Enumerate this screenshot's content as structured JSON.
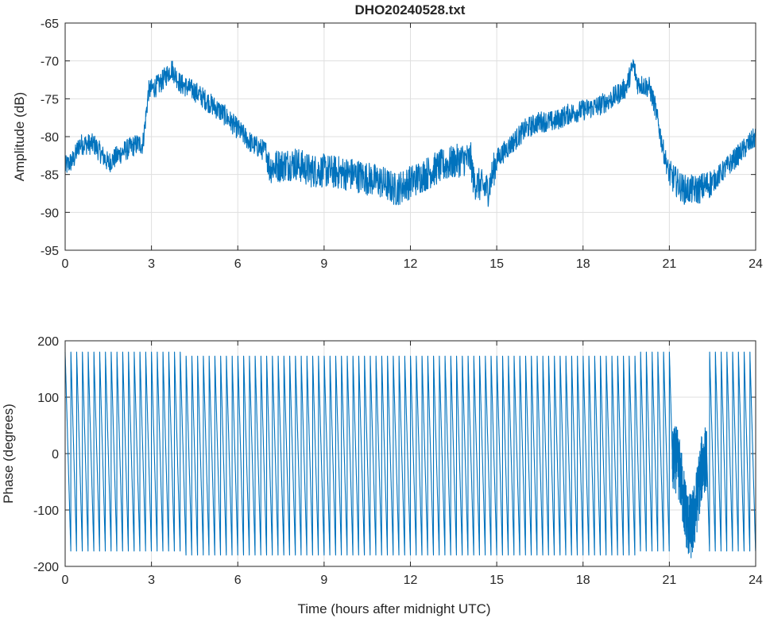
{
  "chart_data": [
    {
      "type": "line",
      "title": "DHO20240528.txt",
      "xlabel": "",
      "ylabel": "Amplitude (dB)",
      "xlim": [
        0,
        24
      ],
      "ylim": [
        -95,
        -65
      ],
      "xticks": [
        "0",
        "3",
        "6",
        "9",
        "12",
        "15",
        "18",
        "21",
        "24"
      ],
      "yticks": [
        "-65",
        "-70",
        "-75",
        "-80",
        "-85",
        "-90",
        "-95"
      ],
      "grid": true,
      "color": "#0072bd",
      "noise_db": 1.4,
      "series": [
        {
          "name": "Amplitude",
          "x": [
            0,
            0.3,
            0.5,
            1.0,
            1.5,
            2.0,
            2.5,
            2.7,
            2.9,
            3.3,
            3.7,
            4.0,
            4.5,
            5.0,
            5.5,
            6.0,
            6.5,
            7.0,
            7.1,
            8.0,
            8.5,
            9.0,
            10.0,
            11.0,
            11.5,
            12.0,
            12.5,
            13.0,
            13.8,
            14.1,
            14.2,
            14.7,
            15.0,
            15.5,
            16.0,
            16.5,
            17.0,
            17.5,
            18.0,
            18.5,
            19.0,
            19.5,
            19.75,
            19.9,
            20.3,
            20.5,
            20.8,
            21.0,
            21.5,
            22.0,
            22.5,
            23.0,
            23.5,
            24.0
          ],
          "y": [
            -84,
            -83,
            -81,
            -81,
            -83.5,
            -82,
            -81,
            -81,
            -74,
            -73,
            -71,
            -73,
            -74,
            -75.5,
            -77,
            -79,
            -81,
            -82,
            -84,
            -83.5,
            -84.5,
            -84.5,
            -85,
            -86,
            -87,
            -86,
            -85,
            -84,
            -83,
            -83,
            -86,
            -87,
            -83,
            -81,
            -79,
            -78,
            -78,
            -77,
            -76.5,
            -76,
            -75,
            -73.5,
            -70.5,
            -73,
            -73.5,
            -76,
            -82,
            -85,
            -87,
            -87,
            -86,
            -84,
            -82,
            -80
          ]
        }
      ]
    },
    {
      "type": "line",
      "title": "",
      "xlabel": "Time (hours after midnight UTC)",
      "ylabel": "Phase (degrees)",
      "xlim": [
        0,
        24
      ],
      "ylim": [
        -200,
        200
      ],
      "xticks": [
        "0",
        "3",
        "6",
        "9",
        "12",
        "15",
        "18",
        "21",
        "24"
      ],
      "yticks": [
        "200",
        "100",
        "0",
        "-100",
        "-200"
      ],
      "grid": true,
      "color": "#0072bd",
      "phase_wrap_deg": [
        -180,
        180
      ],
      "cycles_per_hour": 5,
      "irregular_interval_hours": [
        21.1,
        22.3
      ],
      "irregular_center_deg": -70
    }
  ]
}
